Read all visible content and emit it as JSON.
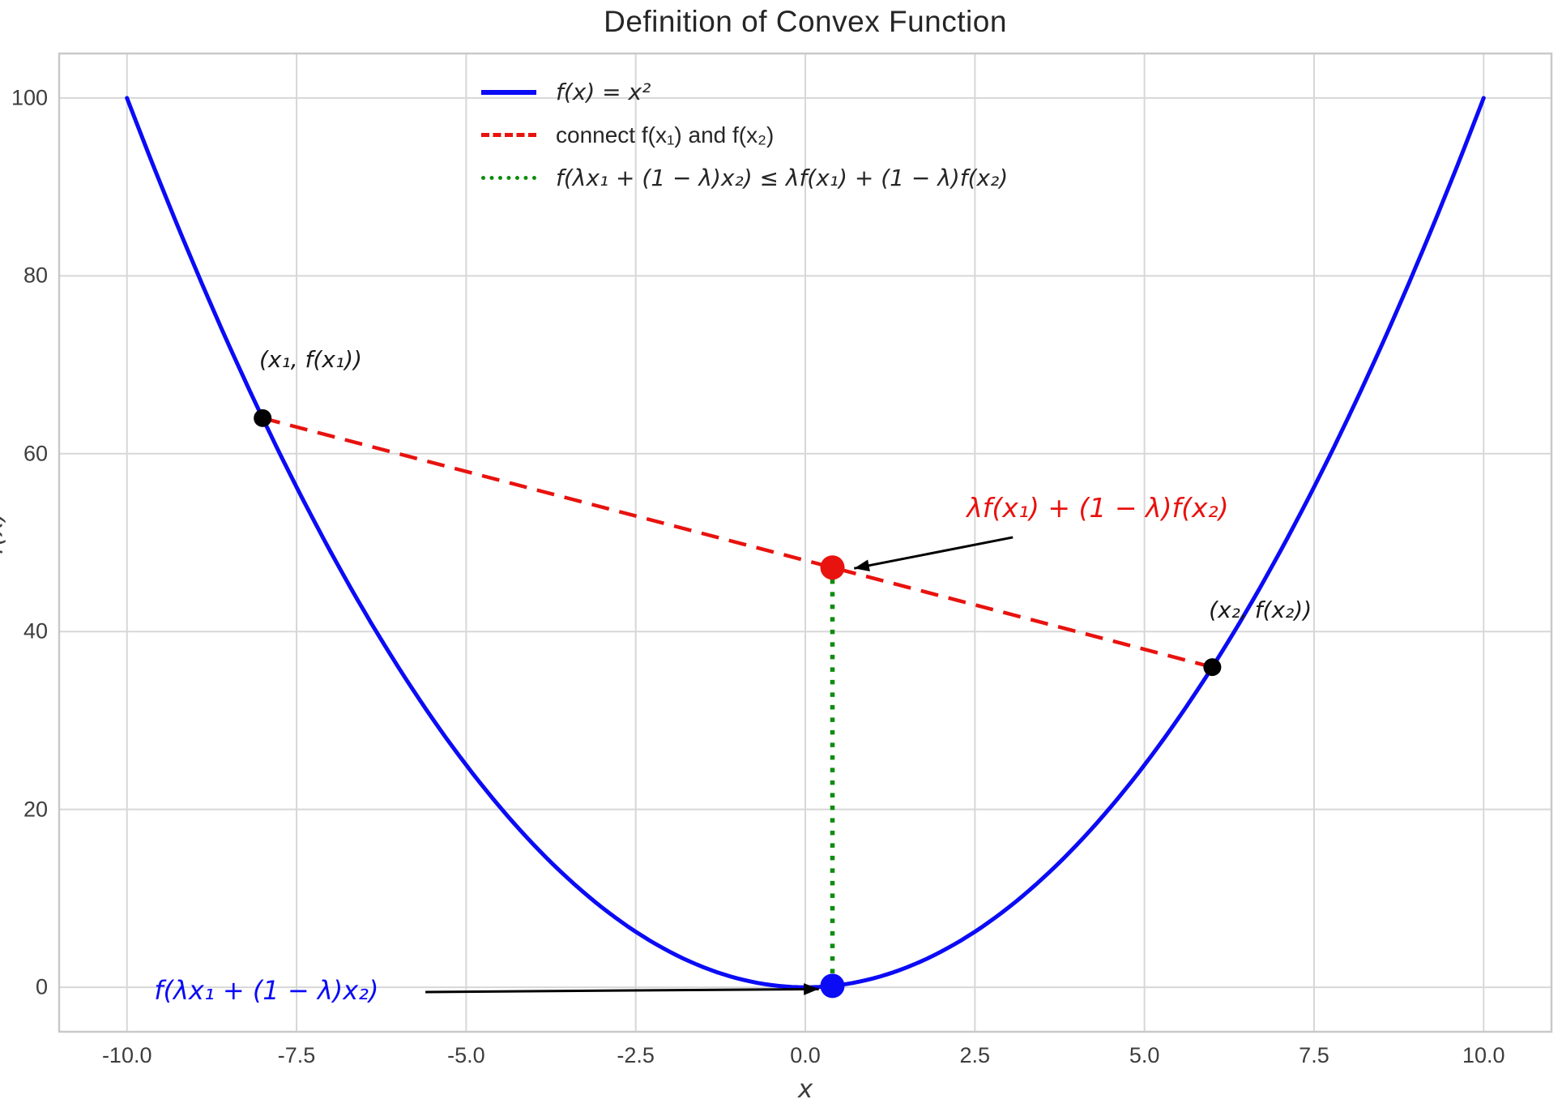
{
  "chart_data": {
    "type": "line",
    "title": "Definition of Convex Function",
    "xlabel": "x",
    "ylabel": "f(x)",
    "grid": true,
    "legend_position": "upper center, frameless",
    "xlim": [
      -11,
      11
    ],
    "ylim": [
      -5,
      105
    ],
    "x_ticks": [
      -10.0,
      -7.5,
      -5.0,
      -2.5,
      0.0,
      2.5,
      5.0,
      7.5,
      10.0
    ],
    "x_tick_labels": [
      "-10.0",
      "-7.5",
      "-5.0",
      "-2.5",
      "0.0",
      "2.5",
      "5.0",
      "7.5",
      "10.0"
    ],
    "y_ticks": [
      0,
      20,
      40,
      60,
      80,
      100
    ],
    "y_tick_labels": [
      "0",
      "20",
      "40",
      "60",
      "80",
      "100"
    ],
    "colors": {
      "curve_blue": "#0b0bf5",
      "chord_red": "#e8120e",
      "gap_green": "#0e8c0e",
      "grid": "#d7d7d7",
      "spine": "#c9c9c9",
      "annotation_black": "#1a1a1a",
      "arrow": "#000000"
    },
    "curve": {
      "expr": "x^2",
      "x_min": -10,
      "x_max": 10,
      "samples": 200
    },
    "x1": -8,
    "f_x1": 64,
    "x2": 6,
    "f_x2": 36,
    "lambda": 0.4,
    "x_mid": 0.4,
    "chord_y_mid": 47.2,
    "f_x_mid": 0.16,
    "chord": {
      "x_from": -8,
      "y_from": 64,
      "x_to": 6,
      "y_to": 36,
      "style": "dashed"
    },
    "vertical_segment": {
      "x": 0.4,
      "y_from": 0.16,
      "y_to": 47.2,
      "style": "dotted"
    },
    "points": [
      {
        "name": "point-x1",
        "x": -8,
        "y": 64,
        "color": "#000000",
        "r": 11
      },
      {
        "name": "point-x2",
        "x": 6,
        "y": 36,
        "color": "#000000",
        "r": 11
      },
      {
        "name": "point-chord-mid",
        "x": 0.4,
        "y": 47.2,
        "color": "#e8120e",
        "r": 15
      },
      {
        "name": "point-function-mid",
        "x": 0.4,
        "y": 0.16,
        "color": "#0b0bf5",
        "r": 15
      }
    ],
    "legend": [
      {
        "label": "f(x) = x²",
        "color": "#0b0bf5",
        "swatch": "solid",
        "italic": true
      },
      {
        "label": "connect f(x₁) and f(x₂)",
        "color": "#e8120e",
        "swatch": "dashed",
        "italic": false
      },
      {
        "label": "f(λx₁ + (1 − λ)x₂) ≤ λf(x₁) + (1 − λ)f(x₂)",
        "color": "#0e8c0e",
        "swatch": "dotted",
        "italic": true
      }
    ],
    "annotations": [
      {
        "text": "(x₁, f(x₁))",
        "color": "#1a1a1a",
        "x": -8.05,
        "y": 71.9,
        "size": 28
      },
      {
        "text": "λf(x₁) + (1 − λ)f(x₂)",
        "color": "#e8120e",
        "x": 2.38,
        "y": 55.4,
        "size": 33,
        "arrow": {
          "x1": 3.06,
          "y1": 50.6,
          "x2": 0.72,
          "y2": 47.1
        }
      },
      {
        "text": "(x₂, f(x₂))",
        "color": "#1a1a1a",
        "x": 5.95,
        "y": 43.8,
        "size": 28
      },
      {
        "text": "f(λx₁ + (1 − λ)x₂)",
        "color": "#0b0bf5",
        "x": -9.6,
        "y": 1.1,
        "size": 32,
        "arrow": {
          "x1": -5.6,
          "y1": -0.53,
          "x2": 0.2,
          "y2": -0.2
        }
      }
    ]
  }
}
